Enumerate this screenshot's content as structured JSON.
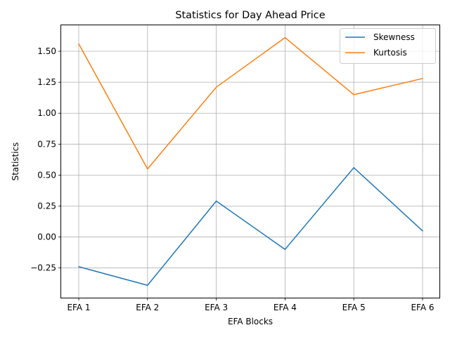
{
  "chart_data": {
    "type": "line",
    "title": "Statistics for Day Ahead Price",
    "xlabel": "EFA Blocks",
    "ylabel": "Statistics",
    "categories": [
      "EFA 1",
      "EFA 2",
      "EFA 3",
      "EFA 4",
      "EFA 5",
      "EFA 6"
    ],
    "series": [
      {
        "name": "Skewness",
        "color": "#1f77b4",
        "values": [
          -0.24,
          -0.39,
          0.29,
          -0.1,
          0.56,
          0.05
        ]
      },
      {
        "name": "Kurtosis",
        "color": "#ff7f0e",
        "values": [
          1.56,
          0.55,
          1.21,
          1.61,
          1.15,
          1.28
        ]
      }
    ],
    "ylim": [
      -0.49,
      1.71
    ],
    "yticks": [
      -0.25,
      0.0,
      0.25,
      0.5,
      0.75,
      1.0,
      1.25,
      1.5
    ],
    "ytick_labels": [
      "−0.25",
      "0.00",
      "0.25",
      "0.50",
      "0.75",
      "1.00",
      "1.25",
      "1.50"
    ],
    "grid": true,
    "legend_position": "top-right"
  }
}
